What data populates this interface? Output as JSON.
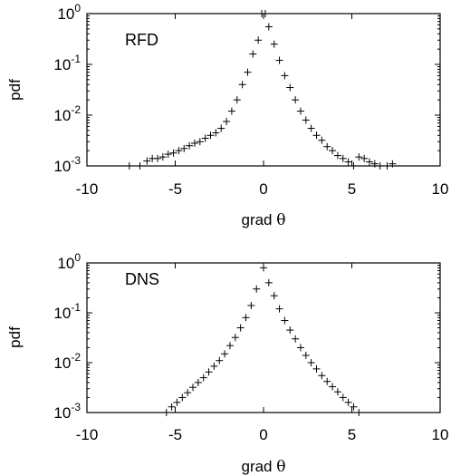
{
  "chart_data": [
    {
      "type": "scatter",
      "panel_label": "RFD",
      "xlabel": "grad",
      "xlabel_symbol": "θ",
      "ylabel": "pdf",
      "xlim": [
        -10,
        10
      ],
      "ylim": [
        0.001,
        1
      ],
      "yscale": "log",
      "grid": false,
      "x_ticks": [
        "-10",
        "-5",
        "0",
        "5",
        "10"
      ],
      "y_ticks": [
        {
          "base": "10",
          "exp": "0"
        },
        {
          "base": "10",
          "exp": "-1"
        },
        {
          "base": "10",
          "exp": "-2"
        },
        {
          "base": "10",
          "exp": "-3"
        }
      ],
      "x": [
        -7.6,
        -7.0,
        -6.6,
        -6.3,
        -6.0,
        -5.7,
        -5.4,
        -5.1,
        -4.8,
        -4.5,
        -4.2,
        -3.9,
        -3.6,
        -3.3,
        -3.0,
        -2.7,
        -2.4,
        -2.1,
        -1.8,
        -1.5,
        -1.2,
        -0.9,
        -0.6,
        -0.3,
        -0.1,
        0.1,
        0.3,
        0.6,
        0.9,
        1.2,
        1.5,
        1.8,
        2.1,
        2.4,
        2.7,
        3.0,
        3.3,
        3.6,
        3.9,
        4.2,
        4.5,
        4.8,
        5.1,
        5.4,
        5.7,
        6.0,
        6.3,
        6.6,
        7.0,
        7.3
      ],
      "y": [
        0.001,
        0.001,
        0.00125,
        0.0014,
        0.0014,
        0.0015,
        0.0017,
        0.0018,
        0.002,
        0.0022,
        0.0025,
        0.0028,
        0.003,
        0.0035,
        0.004,
        0.0045,
        0.0055,
        0.0075,
        0.012,
        0.02,
        0.04,
        0.07,
        0.16,
        0.3,
        1.0,
        1.0,
        0.55,
        0.25,
        0.12,
        0.06,
        0.035,
        0.02,
        0.012,
        0.008,
        0.0055,
        0.004,
        0.0032,
        0.0024,
        0.002,
        0.0016,
        0.0014,
        0.0012,
        0.001,
        0.0015,
        0.0014,
        0.0012,
        0.0011,
        0.001,
        0.001,
        0.0011
      ]
    },
    {
      "type": "scatter",
      "panel_label": "DNS",
      "xlabel": "grad",
      "xlabel_symbol": "θ",
      "ylabel": "pdf",
      "xlim": [
        -10,
        10
      ],
      "ylim": [
        0.001,
        1
      ],
      "yscale": "log",
      "grid": false,
      "x_ticks": [
        "-10",
        "-5",
        "0",
        "5",
        "10"
      ],
      "y_ticks": [
        {
          "base": "10",
          "exp": "0"
        },
        {
          "base": "10",
          "exp": "-1"
        },
        {
          "base": "10",
          "exp": "-2"
        },
        {
          "base": "10",
          "exp": "-3"
        }
      ],
      "x": [
        -5.5,
        -5.2,
        -4.9,
        -4.6,
        -4.3,
        -4.0,
        -3.7,
        -3.4,
        -3.1,
        -2.8,
        -2.5,
        -2.2,
        -1.9,
        -1.6,
        -1.3,
        -1.0,
        -0.7,
        -0.4,
        0.0,
        0.3,
        0.6,
        0.9,
        1.2,
        1.5,
        1.8,
        2.1,
        2.4,
        2.7,
        3.0,
        3.3,
        3.6,
        3.9,
        4.2,
        4.5,
        4.8,
        5.1,
        5.4
      ],
      "y": [
        0.001,
        0.0013,
        0.0016,
        0.002,
        0.0025,
        0.0032,
        0.004,
        0.005,
        0.0065,
        0.0085,
        0.011,
        0.015,
        0.022,
        0.032,
        0.05,
        0.08,
        0.14,
        0.3,
        0.8,
        0.4,
        0.22,
        0.12,
        0.07,
        0.045,
        0.03,
        0.02,
        0.014,
        0.01,
        0.0075,
        0.0055,
        0.0042,
        0.0033,
        0.0026,
        0.002,
        0.0016,
        0.0013,
        0.001
      ]
    }
  ]
}
